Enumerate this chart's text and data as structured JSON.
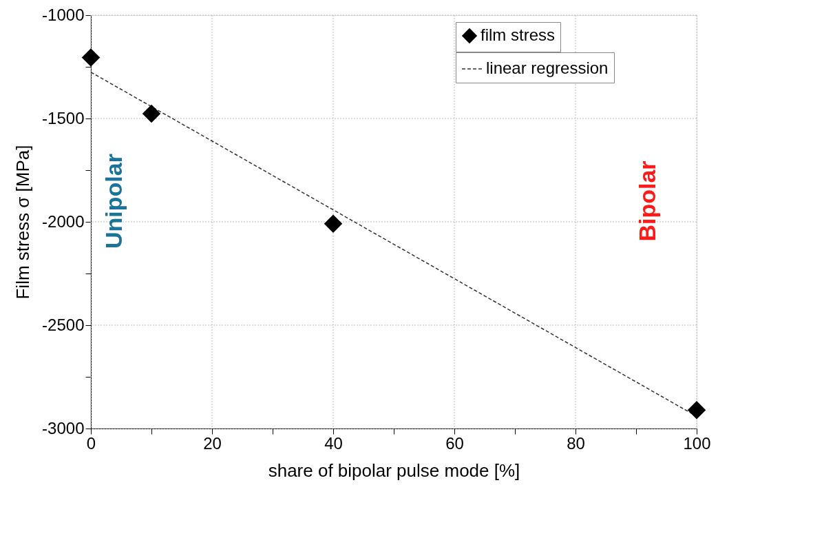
{
  "chart_data": {
    "type": "scatter",
    "xlabel": "share of bipolar pulse mode [%]",
    "ylabel": "Film stress σ [MPa]",
    "x": [
      0,
      10,
      40,
      100
    ],
    "series": [
      {
        "name": "film stress",
        "color": "#000000",
        "marker": "diamond",
        "values": [
          -1205,
          -1477,
          -2009,
          -2911
        ]
      },
      {
        "name": "linear regression",
        "type": "line",
        "color": "#333333",
        "line_style": "dashed",
        "marker": "none",
        "x": [
          0,
          100
        ],
        "values": [
          -1276,
          -2941
        ]
      }
    ],
    "xlim": [
      0,
      100
    ],
    "ylim": [
      -3000,
      -1000
    ],
    "xticks": [
      0,
      {
        "value": 10,
        "label": null
      },
      20,
      {
        "value": 30,
        "label": null
      },
      40,
      {
        "value": 50,
        "label": null
      },
      60,
      {
        "value": 70,
        "label": null
      },
      80,
      {
        "value": 90,
        "label": null
      },
      100
    ],
    "yticks": [
      -3000,
      {
        "value": -2750,
        "label": null
      },
      -2500,
      {
        "value": -2250,
        "label": null
      },
      -2000,
      {
        "value": -1750,
        "label": null
      },
      -1500,
      {
        "value": -1250,
        "label": null
      },
      -1000
    ],
    "grid": true,
    "legend": "top right",
    "annotations": [
      "Unipolar",
      "Bipolar"
    ]
  }
}
